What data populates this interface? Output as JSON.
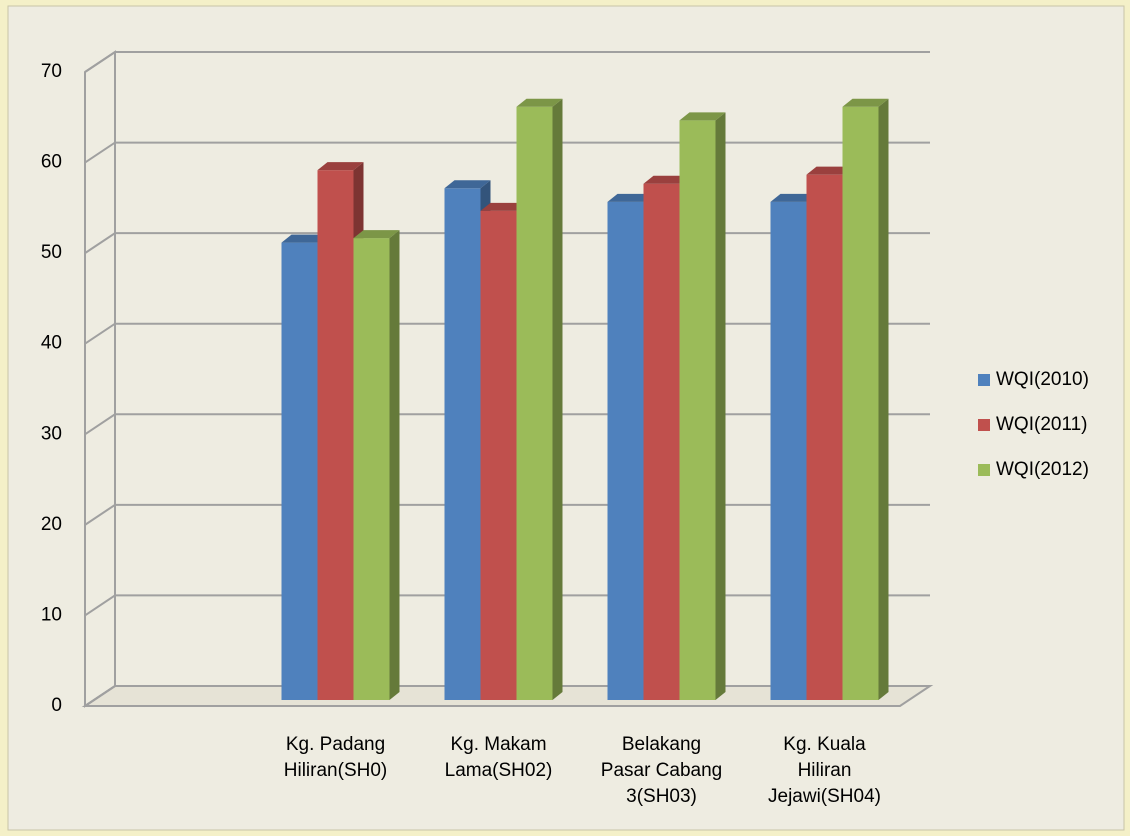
{
  "chart_data": {
    "type": "bar3d",
    "categories": [
      null,
      [
        "Kg. Padang",
        "Hiliran(SH0)"
      ],
      [
        "Kg. Makam",
        "Lama(SH02)"
      ],
      [
        "Belakang",
        "Pasar Cabang",
        "3(SH03)"
      ],
      [
        "Kg. Kuala",
        "Hiliran",
        "Jejawi(SH04)"
      ]
    ],
    "series": [
      {
        "name": "WQI(2010)",
        "color": "#4f81bd",
        "values": [
          null,
          50.5,
          56.5,
          55,
          55
        ]
      },
      {
        "name": "WQI(2011)",
        "color": "#c0504d",
        "values": [
          null,
          58.5,
          54,
          57,
          58
        ]
      },
      {
        "name": "WQI(2012)",
        "color": "#9bbb59",
        "values": [
          null,
          51,
          65.5,
          64,
          65.5
        ]
      }
    ],
    "ylim": [
      0,
      70
    ],
    "yticks": [
      0,
      10,
      20,
      30,
      40,
      50,
      60,
      70
    ],
    "grid": true,
    "legend": "right"
  }
}
